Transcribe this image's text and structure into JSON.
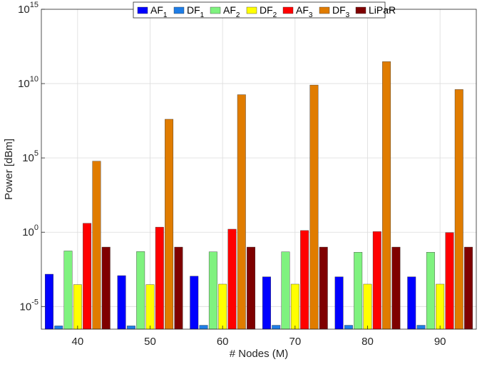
{
  "chart_data": {
    "type": "bar",
    "xlabel": "# Nodes (M)",
    "ylabel": "Power [dBm]",
    "yscale": "log",
    "ylim": [
      3e-07,
      1000000000000000.0
    ],
    "y_ticks": [
      {
        "value": 1e-05,
        "base": "10",
        "exp": "-5"
      },
      {
        "value": 1,
        "base": "10",
        "exp": "0"
      },
      {
        "value": 100000.0,
        "base": "10",
        "exp": "5"
      },
      {
        "value": 10000000000.0,
        "base": "10",
        "exp": "10"
      },
      {
        "value": 1000000000000000.0,
        "base": "10",
        "exp": "15"
      }
    ],
    "categories": [
      "40",
      "50",
      "60",
      "70",
      "80",
      "90"
    ],
    "grid": true,
    "legend_position": "top",
    "series": [
      {
        "name": "AF",
        "sub": "1",
        "color": "#0000ff",
        "values": [
          0.0015,
          0.0012,
          0.0011,
          0.001,
          0.001,
          0.001
        ]
      },
      {
        "name": "DF",
        "sub": "1",
        "color": "#1e7de6",
        "values": [
          5e-07,
          5e-07,
          5.5e-07,
          5.5e-07,
          5.5e-07,
          5.5e-07
        ]
      },
      {
        "name": "AF",
        "sub": "2",
        "color": "#7ff27f",
        "values": [
          0.055,
          0.05,
          0.048,
          0.048,
          0.045,
          0.045
        ]
      },
      {
        "name": "DF",
        "sub": "2",
        "color": "#ffff00",
        "values": [
          0.0003,
          0.0003,
          0.00032,
          0.00032,
          0.00032,
          0.00032
        ]
      },
      {
        "name": "AF",
        "sub": "3",
        "color": "#ff0000",
        "values": [
          4.0,
          2.2,
          1.6,
          1.3,
          1.1,
          0.95
        ]
      },
      {
        "name": "DF",
        "sub": "3",
        "color": "#e07c00",
        "values": [
          60000,
          40000000,
          1800000000,
          8000000000,
          300000000000,
          4000000000
        ]
      },
      {
        "name": "LiPaR",
        "sub": "",
        "color": "#7f0000",
        "values": [
          0.1,
          0.1,
          0.1,
          0.1,
          0.1,
          0.1
        ]
      }
    ]
  }
}
